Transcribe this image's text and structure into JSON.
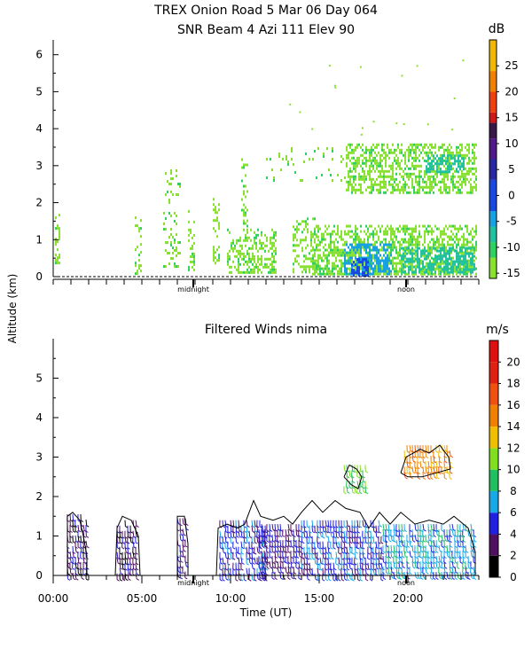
{
  "title_line1": "TREX Onion Road   5 Mar 06 Day 064",
  "title_line2": "SNR Beam 4 Azi 111 Elev 90",
  "y_axis_label": "Altitude (km)",
  "x_axis_label": "Time (UT)",
  "chart_data": [
    {
      "type": "heatmap",
      "title": "SNR Beam 4 Azi 111 Elev 90",
      "ylim": [
        0,
        6.4
      ],
      "xlim": [
        0,
        24
      ],
      "yticks": [
        0,
        1,
        2,
        3,
        4,
        5,
        6
      ],
      "annotations": [
        {
          "text": "midnight",
          "x": 7.9
        },
        {
          "text": "noon",
          "x": 19.9
        }
      ],
      "colorbar": {
        "unit": "dB",
        "ticks": [
          25,
          20,
          15,
          10,
          5,
          0,
          -5,
          -10,
          -15
        ],
        "range": [
          -16,
          30
        ],
        "colors": [
          {
            "from": -16,
            "to": -12,
            "color": "#88e030"
          },
          {
            "from": -12,
            "to": -9,
            "color": "#30d060"
          },
          {
            "from": -9,
            "to": -6,
            "color": "#20c0a0"
          },
          {
            "from": -6,
            "to": -3,
            "color": "#18a0e0"
          },
          {
            "from": -3,
            "to": 3,
            "color": "#1848e0"
          },
          {
            "from": 3,
            "to": 7,
            "color": "#2828a0"
          },
          {
            "from": 7,
            "to": 11,
            "color": "#501888"
          },
          {
            "from": 11,
            "to": 14,
            "color": "#381848"
          },
          {
            "from": 14,
            "to": 16,
            "color": "#d01818"
          },
          {
            "from": 16,
            "to": 20,
            "color": "#f04010"
          },
          {
            "from": 20,
            "to": 24,
            "color": "#f08000"
          },
          {
            "from": 24,
            "to": 30,
            "color": "#f0b800"
          }
        ]
      },
      "regions": [
        {
          "x0": 0.1,
          "x1": 0.35,
          "y0": 0.4,
          "y1": 1.7,
          "density": 0.5
        },
        {
          "x0": 4.6,
          "x1": 5.0,
          "y0": 0.1,
          "y1": 1.7,
          "density": 0.35
        },
        {
          "x0": 6.2,
          "x1": 7.2,
          "y0": 0.3,
          "y1": 2.9,
          "density": 0.25
        },
        {
          "x0": 7.6,
          "x1": 8.0,
          "y0": 0.2,
          "y1": 1.8,
          "density": 0.35
        },
        {
          "x0": 9.0,
          "x1": 9.4,
          "y0": 0.2,
          "y1": 2.2,
          "density": 0.3
        },
        {
          "x0": 9.8,
          "x1": 12.6,
          "y0": 0.1,
          "y1": 1.3,
          "density": 0.5
        },
        {
          "x0": 10.6,
          "x1": 11.0,
          "y0": 1.3,
          "y1": 3.2,
          "density": 0.3
        },
        {
          "x0": 13.5,
          "x1": 15.0,
          "y0": 0.1,
          "y1": 1.6,
          "density": 0.4
        },
        {
          "x0": 14.6,
          "x1": 23.9,
          "y0": 0.1,
          "y1": 1.4,
          "density": 0.7
        },
        {
          "x0": 16.5,
          "x1": 23.9,
          "y0": 2.3,
          "y1": 3.6,
          "density": 0.6
        },
        {
          "x0": 12.0,
          "x1": 16.5,
          "y0": 2.6,
          "y1": 3.5,
          "density": 0.12
        }
      ],
      "intense_regions": [
        {
          "x0": 16.4,
          "x1": 19.0,
          "y0": 0.05,
          "y1": 0.9,
          "color": "#18a0e0"
        },
        {
          "x0": 16.8,
          "x1": 17.8,
          "y0": 0.05,
          "y1": 0.5,
          "color": "#1848e0"
        },
        {
          "x0": 19.6,
          "x1": 23.8,
          "y0": 0.1,
          "y1": 0.8,
          "color": "#20c0a0"
        },
        {
          "x0": 21.0,
          "x1": 23.2,
          "y0": 2.8,
          "y1": 3.3,
          "color": "#20c0a0"
        }
      ]
    },
    {
      "type": "scatter",
      "title": "Filtered Winds nima",
      "ylim": [
        0,
        6
      ],
      "xlim": [
        0,
        24
      ],
      "yticks": [
        0,
        1,
        2,
        3,
        4,
        5
      ],
      "xticks": [
        "00:00",
        "05:00",
        "10:00",
        "15:00",
        "20:00"
      ],
      "xtick_values": [
        0,
        5,
        10,
        15,
        20
      ],
      "annotations": [
        {
          "text": "midnight",
          "x": 7.9
        },
        {
          "text": "noon",
          "x": 19.9
        }
      ],
      "colorbar": {
        "unit": "m/s",
        "ticks": [
          20,
          18,
          16,
          14,
          12,
          10,
          8,
          6,
          4,
          2,
          0
        ],
        "range": [
          0,
          22
        ],
        "colors": [
          {
            "from": 0,
            "to": 2,
            "color": "#000000"
          },
          {
            "from": 2,
            "to": 4,
            "color": "#501060"
          },
          {
            "from": 4,
            "to": 6,
            "color": "#2020e0"
          },
          {
            "from": 6,
            "to": 8,
            "color": "#18a8e8"
          },
          {
            "from": 8,
            "to": 10,
            "color": "#20c060"
          },
          {
            "from": 10,
            "to": 12,
            "color": "#80e020"
          },
          {
            "from": 12,
            "to": 14,
            "color": "#f0c000"
          },
          {
            "from": 14,
            "to": 16,
            "color": "#f08000"
          },
          {
            "from": 16,
            "to": 18,
            "color": "#f05010"
          },
          {
            "from": 18,
            "to": 20,
            "color": "#e02010"
          },
          {
            "from": 20,
            "to": 22,
            "color": "#e01010"
          }
        ]
      },
      "wind_regions": [
        {
          "x0": 0.8,
          "x1": 2.0,
          "y0": 0.05,
          "y1": 1.55,
          "speed": 3
        },
        {
          "x0": 3.6,
          "x1": 4.8,
          "y0": 0.05,
          "y1": 1.4,
          "speed": 3
        },
        {
          "x0": 7.0,
          "x1": 7.6,
          "y0": 0.05,
          "y1": 1.45,
          "speed": 4
        },
        {
          "x0": 9.4,
          "x1": 12.0,
          "y0": 0.05,
          "y1": 1.4,
          "speed": 5
        },
        {
          "x0": 11.6,
          "x1": 14.0,
          "y0": 0.05,
          "y1": 1.3,
          "speed": 4
        },
        {
          "x0": 14.0,
          "x1": 18.6,
          "y0": 0.05,
          "y1": 1.4,
          "speed": 5
        },
        {
          "x0": 18.6,
          "x1": 23.8,
          "y0": 0.05,
          "y1": 1.3,
          "speed": 7
        },
        {
          "x0": 19.8,
          "x1": 22.4,
          "y0": 2.5,
          "y1": 3.3,
          "speed": 15
        },
        {
          "x0": 16.4,
          "x1": 17.6,
          "y0": 2.2,
          "y1": 2.8,
          "speed": 10
        }
      ],
      "contours": [
        [
          [
            0.8,
            0
          ],
          [
            0.8,
            1.5
          ],
          [
            1.1,
            1.6
          ],
          [
            1.5,
            1.4
          ],
          [
            1.7,
            1.0
          ],
          [
            1.9,
            0.5
          ],
          [
            1.9,
            0
          ]
        ],
        [
          [
            3.5,
            0
          ],
          [
            3.6,
            1.2
          ],
          [
            3.9,
            1.5
          ],
          [
            4.4,
            1.4
          ],
          [
            4.8,
            1.0
          ],
          [
            4.9,
            0
          ]
        ],
        [
          [
            7.0,
            0
          ],
          [
            7.0,
            1.5
          ],
          [
            7.4,
            1.5
          ],
          [
            7.6,
            0.8
          ],
          [
            7.6,
            0
          ]
        ],
        [
          [
            9.2,
            0
          ],
          [
            9.3,
            1.2
          ],
          [
            9.8,
            1.3
          ],
          [
            10.4,
            1.2
          ],
          [
            10.8,
            1.3
          ],
          [
            11.3,
            1.9
          ],
          [
            11.7,
            1.5
          ],
          [
            12.4,
            1.4
          ],
          [
            13.0,
            1.5
          ],
          [
            13.5,
            1.3
          ],
          [
            14.0,
            1.6
          ],
          [
            14.6,
            1.9
          ],
          [
            15.2,
            1.6
          ],
          [
            15.9,
            1.9
          ],
          [
            16.5,
            1.7
          ],
          [
            17.3,
            1.6
          ],
          [
            17.8,
            1.2
          ],
          [
            18.4,
            1.6
          ],
          [
            19.0,
            1.3
          ],
          [
            19.6,
            1.6
          ],
          [
            20.4,
            1.3
          ],
          [
            21.2,
            1.4
          ],
          [
            22.0,
            1.3
          ],
          [
            22.6,
            1.5
          ],
          [
            23.4,
            1.2
          ],
          [
            23.8,
            0.6
          ],
          [
            23.8,
            0
          ]
        ],
        [
          [
            19.6,
            2.6
          ],
          [
            19.9,
            3.0
          ],
          [
            20.7,
            3.2
          ],
          [
            21.2,
            3.1
          ],
          [
            21.8,
            3.3
          ],
          [
            22.3,
            3.0
          ],
          [
            22.4,
            2.7
          ],
          [
            21.6,
            2.6
          ],
          [
            20.8,
            2.5
          ],
          [
            20.0,
            2.5
          ],
          [
            19.6,
            2.6
          ]
        ],
        [
          [
            16.4,
            2.5
          ],
          [
            16.7,
            2.8
          ],
          [
            17.1,
            2.7
          ],
          [
            17.4,
            2.5
          ],
          [
            17.2,
            2.2
          ],
          [
            16.8,
            2.3
          ],
          [
            16.4,
            2.5
          ]
        ]
      ]
    }
  ]
}
